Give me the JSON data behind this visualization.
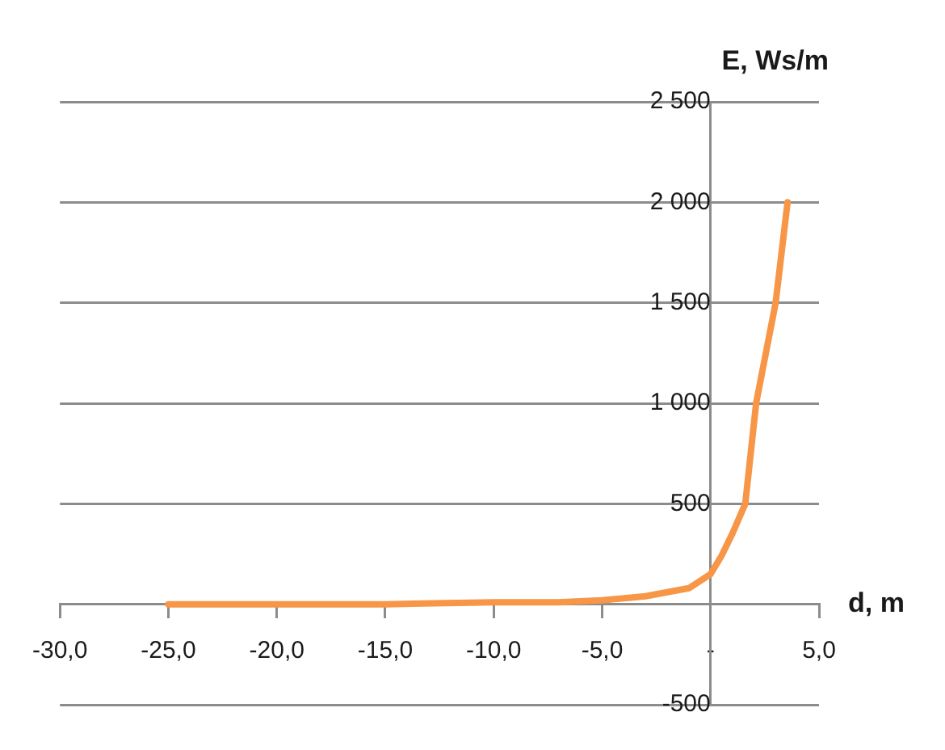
{
  "chart_data": {
    "type": "line",
    "xlabel": "d, m",
    "ylabel": "E, Ws/m",
    "series": [
      {
        "color": "#f79646",
        "x": [
          -25,
          -20,
          -15,
          -10,
          -7,
          -5,
          -3,
          -2,
          -1,
          0,
          0.5,
          1,
          1.6,
          2.1,
          3,
          3.55
        ],
        "values": [
          0,
          0,
          0,
          10,
          10,
          20,
          40,
          60,
          80,
          150,
          240,
          350,
          500,
          1000,
          1500,
          2000
        ]
      }
    ],
    "xlim": [
      -30,
      5
    ],
    "xticks": [
      {
        "value": -30,
        "label": "-30,0"
      },
      {
        "value": -25,
        "label": "-25,0"
      },
      {
        "value": -20,
        "label": "-20,0"
      },
      {
        "value": -15,
        "label": "-15,0"
      },
      {
        "value": -10,
        "label": "-10,0"
      },
      {
        "value": -5,
        "label": "-5,0"
      },
      {
        "value": 0,
        "label": "-"
      },
      {
        "value": 5,
        "label": "5,0"
      }
    ],
    "ylim": [
      -500,
      2500
    ],
    "yticks": [
      {
        "value": -500,
        "label": "-500"
      },
      {
        "value": 0,
        "label": null
      },
      500,
      {
        "value": 1000,
        "label": "1 000"
      },
      {
        "value": 1500,
        "label": "1 500"
      },
      {
        "value": 2000,
        "label": "2 000"
      },
      {
        "value": 2500,
        "label": "2 500"
      }
    ],
    "grid": "y",
    "legend": false,
    "marker": "none",
    "line_style": "solid"
  }
}
